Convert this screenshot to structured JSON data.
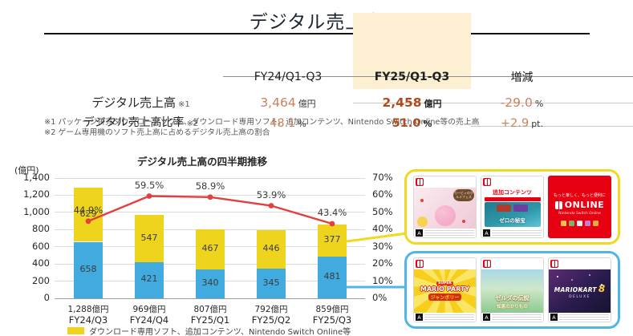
{
  "page": {
    "title": "デジタル売上高"
  },
  "colors": {
    "accent_orange_regular": "#C9825C",
    "accent_orange_bold": "#B04B1E",
    "highlight_column_bg": "#FCEFD2",
    "bar_yellow": "#EFD41E",
    "bar_blue": "#41AADE",
    "line_red": "#E2403E",
    "box_yellow_border": "#F0D91E",
    "box_blue_border": "#4FB6E5",
    "switch_red": "#E60012"
  },
  "table": {
    "headers": {
      "fy24": "FY24/Q1-Q3",
      "fy25": "FY25/Q1-Q3",
      "change": "増減"
    },
    "rows": [
      {
        "label": "デジタル売上高",
        "note": "※1",
        "fy24_value": "3,464",
        "fy24_unit": "億円",
        "fy25_value": "2,458",
        "fy25_unit": "億円",
        "change_value": "-29.0",
        "change_unit": "%"
      },
      {
        "label": "デジタル売上高比率",
        "note": "※2",
        "fy24_value": "48.1",
        "fy24_unit": "%",
        "fy25_value": "51.0",
        "fy25_unit": "%",
        "change_value": "+2.9",
        "change_unit": "pt."
      }
    ],
    "footnotes": [
      "※1 パッケージ併売ダウンロードソフト、ダウンロード専用ソフト、追加コンテンツ、Nintendo Switch Online等の売上高",
      "※2 ゲーム専用機のソフト売上高に占めるデジタル売上高の割合"
    ]
  },
  "chart_data": {
    "type": "bar",
    "subtype": "stacked-bar-with-line",
    "title": "デジタル売上高の四半期推移",
    "y_left_axis_label": "(億円)",
    "categories": [
      "FY24/Q3",
      "FY24/Q4",
      "FY25/Q1",
      "FY25/Q2",
      "FY25/Q3"
    ],
    "category_totals": [
      "1,288億円",
      "969億円",
      "807億円",
      "792億円",
      "859億円"
    ],
    "series": [
      {
        "id": "yellow-segment",
        "type": "bar",
        "color": "#EFD41E",
        "values": [
          629,
          547,
          467,
          446,
          377
        ]
      },
      {
        "id": "blue-segment",
        "type": "bar",
        "color": "#41AADE",
        "values": [
          658,
          421,
          340,
          345,
          481
        ]
      },
      {
        "id": "digital-sales-ratio-line",
        "type": "line",
        "axis": "right",
        "color": "#E2403E",
        "values": [
          44.9,
          59.5,
          58.9,
          53.9,
          43.4
        ],
        "labels": [
          "44.9%",
          "59.5%",
          "58.9%",
          "53.9%",
          "43.4%"
        ]
      }
    ],
    "y_left_range": [
      0,
      1400
    ],
    "y_right_range": [
      0,
      70
    ],
    "y_left_ticks": [
      "1,400",
      "1,200",
      "1,000",
      "800",
      "600",
      "400",
      "200",
      "0"
    ],
    "y_right_ticks": [
      "70%",
      "60%",
      "50%",
      "40%",
      "30%",
      "20%",
      "10%",
      "0%"
    ],
    "grid": true,
    "legend_position": "bottom",
    "legend": [
      {
        "swatch_color": "#EFD41E",
        "label": "ダウンロード専用ソフト、追加コンテンツ、Nintendo Switch Online等"
      }
    ]
  },
  "showcase": {
    "cero": "A",
    "top_box": {
      "cards": [
        {
          "name": "カービィのグルメフェス"
        },
        {
          "header": "追加コンテンツ",
          "title": "ゼロの秘宝"
        },
        {
          "tagline": "もっと楽しく、もっと便利に",
          "logo_text": "ONLINE",
          "subtitle": "Nintendo Switch Online"
        }
      ]
    },
    "bottom_box": {
      "cards": [
        {
          "super": "SUPER",
          "title": "MARIO PARTY",
          "subtitle": "ジャンボリー"
        },
        {
          "title": "ゼルダの伝説",
          "subtitle": "知恵のかりもの"
        },
        {
          "title": "MARIOKART",
          "number": "8",
          "subtitle": "DELUXE"
        }
      ]
    }
  }
}
